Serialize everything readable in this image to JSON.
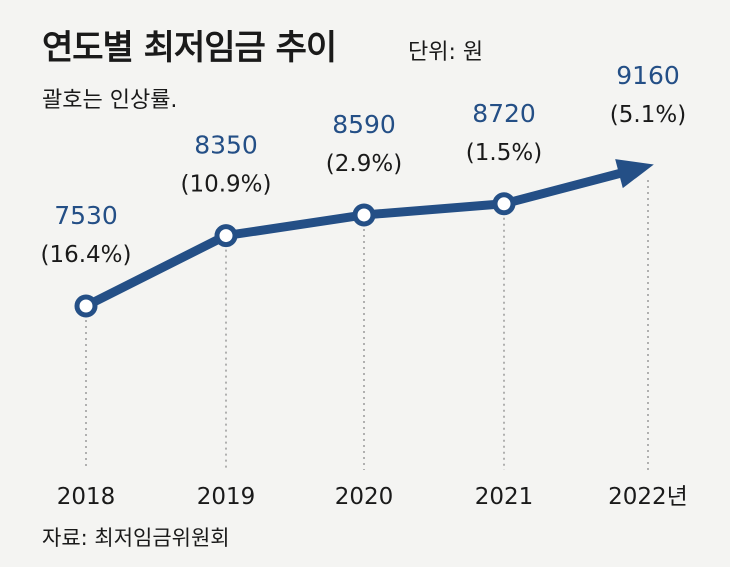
{
  "header": {
    "title": "연도별 최저임금 추이",
    "unit": "단위: 원",
    "subtitle": "괄호는 인상률."
  },
  "source": "자료: 최저임금위원회",
  "colors": {
    "line": "#244f86",
    "value_text": "#244f86",
    "point_fill": "#ffffff"
  },
  "chart_data": {
    "type": "line",
    "categories": [
      "2018",
      "2019",
      "2020",
      "2021",
      "2022년"
    ],
    "values": [
      7530,
      8350,
      8590,
      8720,
      9160
    ],
    "value_labels": [
      "7530",
      "8350",
      "8590",
      "8720",
      "9160"
    ],
    "rate_labels": [
      "(16.4%)",
      "(10.9%)",
      "(2.9%)",
      "(1.5%)",
      "(5.1%)"
    ],
    "title": "연도별 최저임금 추이",
    "ylabel": "",
    "xlabel": "",
    "unit": "원",
    "grid": false,
    "last_point_marker": "arrow"
  }
}
